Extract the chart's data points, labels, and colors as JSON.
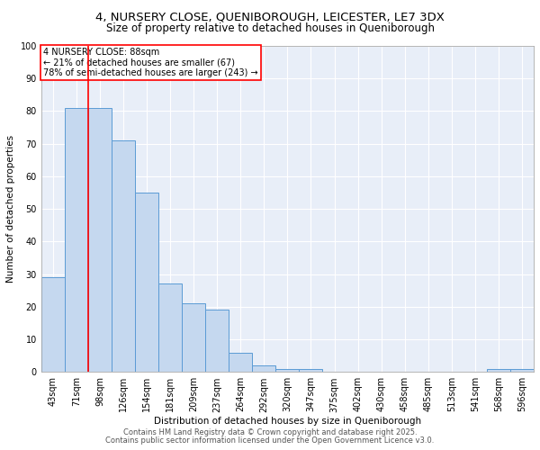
{
  "title1": "4, NURSERY CLOSE, QUENIBOROUGH, LEICESTER, LE7 3DX",
  "title2": "Size of property relative to detached houses in Queniborough",
  "xlabel": "Distribution of detached houses by size in Queniborough",
  "ylabel": "Number of detached properties",
  "categories": [
    "43sqm",
    "71sqm",
    "98sqm",
    "126sqm",
    "154sqm",
    "181sqm",
    "209sqm",
    "237sqm",
    "264sqm",
    "292sqm",
    "320sqm",
    "347sqm",
    "375sqm",
    "402sqm",
    "430sqm",
    "458sqm",
    "485sqm",
    "513sqm",
    "541sqm",
    "568sqm",
    "596sqm"
  ],
  "values": [
    29,
    81,
    81,
    71,
    55,
    27,
    21,
    19,
    6,
    2,
    1,
    1,
    0,
    0,
    0,
    0,
    0,
    0,
    0,
    1,
    1
  ],
  "bar_color": "#c5d8ef",
  "bar_edge_color": "#5b9bd5",
  "bar_width": 1.0,
  "vline_x": 1.5,
  "vline_color": "red",
  "annotation_text": "4 NURSERY CLOSE: 88sqm\n← 21% of detached houses are smaller (67)\n78% of semi-detached houses are larger (243) →",
  "ylim": [
    0,
    100
  ],
  "yticks": [
    0,
    10,
    20,
    30,
    40,
    50,
    60,
    70,
    80,
    90,
    100
  ],
  "footnote1": "Contains HM Land Registry data © Crown copyright and database right 2025.",
  "footnote2": "Contains public sector information licensed under the Open Government Licence v3.0.",
  "bg_color": "#e8eef8",
  "title_fontsize": 9.5,
  "subtitle_fontsize": 8.5,
  "axis_fontsize": 7.5,
  "tick_fontsize": 7.0,
  "footnote_fontsize": 6.0
}
